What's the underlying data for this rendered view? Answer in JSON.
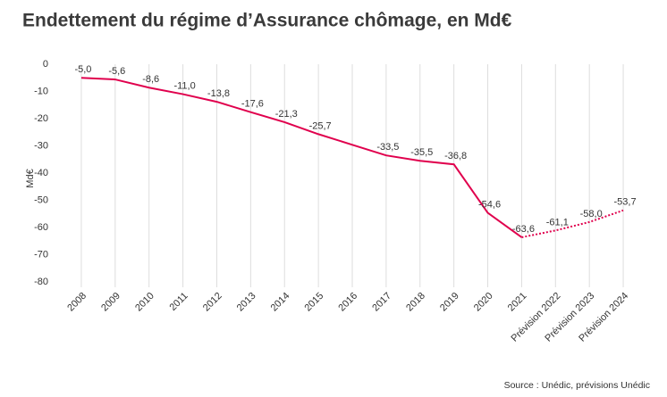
{
  "chart_data": {
    "type": "line",
    "title": "Endettement du régime d’Assurance chômage, en Md€",
    "ylabel": "Md€",
    "source": "Source : Unédic, prévisions Unédic",
    "categories": [
      "2008",
      "2009",
      "2010",
      "2011",
      "2012",
      "2013",
      "2014",
      "2015",
      "2016",
      "2017",
      "2018",
      "2019",
      "2020",
      "2021",
      "Prévision 2022",
      "Prévision 2023",
      "Prévision 2024"
    ],
    "values": [
      -5.0,
      -5.6,
      -8.6,
      -11.0,
      -13.8,
      -17.6,
      -21.3,
      -25.7,
      -29.6,
      -33.5,
      -35.5,
      -36.8,
      -54.6,
      -63.6,
      -61.1,
      -58.0,
      -53.7
    ],
    "value_labels": [
      "-5,0",
      "-5,6",
      "-8,6",
      "-11,0",
      "-13,8",
      "-17,6",
      "-21,3",
      "-25,7",
      null,
      "-33,5",
      "-35,5",
      "-36,8",
      "-54,6",
      "-63,6",
      "-61,1",
      "-58,0",
      "-53,7"
    ],
    "color": "#e0004d",
    "dotted_from_index": 13,
    "ylim": [
      -80,
      0
    ],
    "yticks": [
      0,
      -10,
      -20,
      -30,
      -40,
      -50,
      -60,
      -70,
      -80
    ],
    "grid": true
  }
}
